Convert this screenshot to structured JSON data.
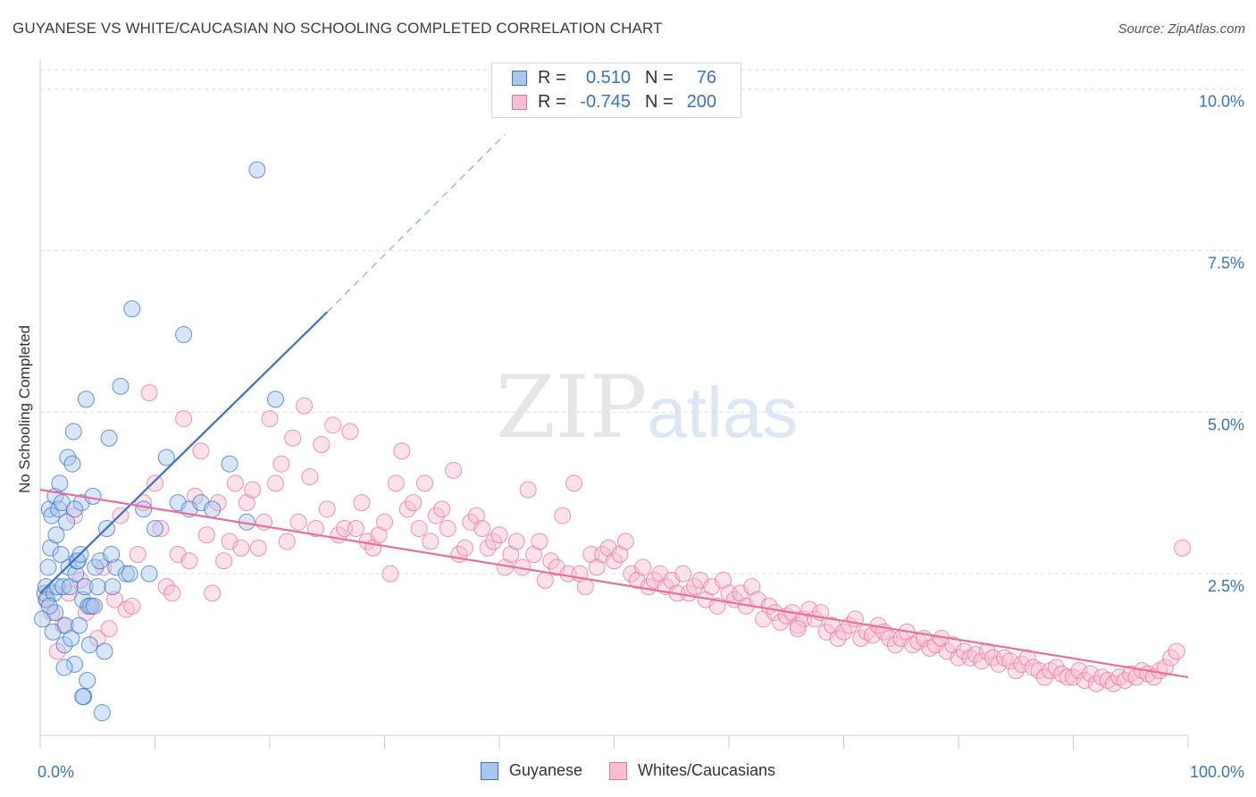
{
  "title": "GUYANESE VS WHITE/CAUCASIAN NO SCHOOLING COMPLETED CORRELATION CHART",
  "source": "Source: ZipAtlas.com",
  "watermark": {
    "zip": "ZIP",
    "atlas": "atlas"
  },
  "colors": {
    "blue": "#3a72c8",
    "blue_fill": "#a9c6ee",
    "pink": "#e8709a",
    "pink_fill": "#f7bfd1",
    "grid": "#dddddd"
  },
  "legend_top": [
    {
      "r_label": "R =",
      "r_value": "0.510",
      "n_label": "N =",
      "n_value": "76",
      "color": "blue"
    },
    {
      "r_label": "R =",
      "r_value": "-0.745",
      "n_label": "N =",
      "n_value": "200",
      "color": "pink"
    }
  ],
  "legend_bottom": [
    {
      "label": "Guyanese",
      "color": "blue"
    },
    {
      "label": "Whites/Caucasians",
      "color": "pink"
    }
  ],
  "chart_data": {
    "type": "scatter",
    "title": "GUYANESE VS WHITE/CAUCASIAN NO SCHOOLING COMPLETED CORRELATION CHART",
    "xlabel": "",
    "ylabel": "No Schooling Completed",
    "xlim": [
      0,
      100
    ],
    "ylim": [
      0,
      10.3
    ],
    "x_tick_labels": {
      "0": "0.0%",
      "100": "100.0%"
    },
    "y_ticks": [
      2.5,
      5.0,
      7.5,
      10.0
    ],
    "y_tick_labels": [
      "2.5%",
      "5.0%",
      "7.5%",
      "10.0%"
    ],
    "grid": true,
    "legend": "top-center",
    "series": [
      {
        "name": "Guyanese",
        "color": "blue",
        "trend": {
          "x": [
            0.0,
            25.0
          ],
          "y": [
            2.2,
            6.55
          ],
          "dashed_to": [
            40.5,
            9.3
          ]
        },
        "points": [
          [
            0.2,
            1.8
          ],
          [
            0.4,
            2.2
          ],
          [
            0.5,
            2.3
          ],
          [
            0.6,
            2.1
          ],
          [
            0.7,
            2.6
          ],
          [
            0.8,
            3.5
          ],
          [
            0.9,
            2.9
          ],
          [
            1.0,
            3.4
          ],
          [
            1.1,
            1.6
          ],
          [
            1.2,
            2.2
          ],
          [
            1.3,
            3.7
          ],
          [
            1.4,
            3.1
          ],
          [
            1.5,
            2.3
          ],
          [
            1.6,
            3.5
          ],
          [
            1.7,
            3.9
          ],
          [
            1.8,
            2.8
          ],
          [
            1.9,
            3.6
          ],
          [
            2.0,
            2.3
          ],
          [
            2.1,
            1.4
          ],
          [
            2.2,
            1.7
          ],
          [
            2.3,
            3.3
          ],
          [
            2.4,
            4.3
          ],
          [
            2.5,
            2.6
          ],
          [
            2.6,
            2.3
          ],
          [
            2.7,
            1.5
          ],
          [
            2.8,
            4.2
          ],
          [
            2.9,
            4.7
          ],
          [
            3.0,
            1.1
          ],
          [
            3.1,
            2.5
          ],
          [
            3.2,
            2.7
          ],
          [
            3.3,
            2.7
          ],
          [
            3.4,
            1.7
          ],
          [
            3.5,
            2.8
          ],
          [
            3.6,
            3.6
          ],
          [
            3.7,
            2.1
          ],
          [
            3.8,
            0.6
          ],
          [
            3.9,
            2.3
          ],
          [
            4.0,
            5.2
          ],
          [
            4.1,
            0.85
          ],
          [
            4.2,
            2.0
          ],
          [
            4.3,
            1.4
          ],
          [
            4.4,
            2.0
          ],
          [
            4.6,
            3.7
          ],
          [
            4.7,
            2.0
          ],
          [
            4.8,
            2.6
          ],
          [
            5.0,
            2.3
          ],
          [
            5.2,
            2.7
          ],
          [
            5.4,
            0.35
          ],
          [
            5.6,
            1.3
          ],
          [
            5.8,
            3.2
          ],
          [
            6.0,
            4.6
          ],
          [
            6.3,
            2.3
          ],
          [
            6.6,
            2.6
          ],
          [
            7.0,
            5.4
          ],
          [
            7.5,
            2.5
          ],
          [
            7.8,
            2.5
          ],
          [
            8.0,
            6.6
          ],
          [
            9.0,
            3.5
          ],
          [
            9.5,
            2.5
          ],
          [
            10.0,
            3.2
          ],
          [
            11.0,
            4.3
          ],
          [
            12.0,
            3.6
          ],
          [
            12.5,
            6.2
          ],
          [
            13.0,
            3.5
          ],
          [
            14.0,
            3.6
          ],
          [
            15.0,
            3.5
          ],
          [
            16.5,
            4.2
          ],
          [
            18.0,
            3.3
          ],
          [
            18.9,
            8.75
          ],
          [
            20.5,
            5.2
          ],
          [
            6.2,
            2.8
          ],
          [
            2.1,
            1.05
          ],
          [
            3.0,
            3.5
          ],
          [
            1.3,
            1.9
          ],
          [
            0.8,
            2.0
          ],
          [
            3.7,
            0.6
          ]
        ]
      },
      {
        "name": "Whites/Caucasians",
        "color": "pink",
        "trend": {
          "x": [
            0.0,
            100.0
          ],
          "y": [
            3.8,
            0.9
          ]
        },
        "points": [
          [
            0.5,
            2.1
          ],
          [
            1.0,
            1.9
          ],
          [
            1.5,
            1.3
          ],
          [
            2.0,
            1.7
          ],
          [
            2.5,
            2.2
          ],
          [
            3.0,
            3.4
          ],
          [
            3.5,
            2.4
          ],
          [
            4.0,
            1.9
          ],
          [
            4.5,
            2.0
          ],
          [
            5.0,
            1.5
          ],
          [
            5.5,
            2.6
          ],
          [
            6.0,
            1.65
          ],
          [
            6.5,
            2.1
          ],
          [
            7.0,
            3.4
          ],
          [
            7.5,
            1.95
          ],
          [
            8.0,
            2.0
          ],
          [
            8.5,
            2.8
          ],
          [
            9.0,
            3.6
          ],
          [
            9.5,
            5.3
          ],
          [
            10.0,
            3.9
          ],
          [
            10.5,
            3.2
          ],
          [
            11.0,
            2.3
          ],
          [
            11.5,
            2.2
          ],
          [
            12.0,
            2.8
          ],
          [
            12.5,
            4.9
          ],
          [
            13.0,
            2.7
          ],
          [
            13.5,
            3.7
          ],
          [
            14.0,
            4.4
          ],
          [
            14.5,
            3.1
          ],
          [
            15.0,
            2.2
          ],
          [
            15.5,
            3.6
          ],
          [
            16.0,
            2.7
          ],
          [
            16.5,
            3.0
          ],
          [
            17.0,
            3.9
          ],
          [
            17.5,
            2.9
          ],
          [
            18.0,
            3.6
          ],
          [
            18.5,
            3.8
          ],
          [
            19.0,
            2.9
          ],
          [
            19.5,
            3.3
          ],
          [
            20.0,
            4.9
          ],
          [
            20.5,
            3.9
          ],
          [
            21.0,
            4.2
          ],
          [
            21.5,
            3.0
          ],
          [
            22.0,
            4.6
          ],
          [
            22.5,
            3.3
          ],
          [
            23.0,
            5.1
          ],
          [
            23.5,
            4.0
          ],
          [
            24.0,
            3.2
          ],
          [
            24.5,
            4.5
          ],
          [
            25.0,
            3.5
          ],
          [
            25.5,
            4.8
          ],
          [
            26.0,
            3.1
          ],
          [
            26.5,
            3.2
          ],
          [
            27.0,
            4.7
          ],
          [
            27.5,
            3.2
          ],
          [
            28.0,
            3.6
          ],
          [
            28.5,
            3.0
          ],
          [
            29.0,
            2.9
          ],
          [
            29.5,
            3.1
          ],
          [
            30.0,
            3.3
          ],
          [
            30.5,
            2.5
          ],
          [
            31.0,
            3.9
          ],
          [
            31.5,
            4.4
          ],
          [
            32.0,
            3.5
          ],
          [
            32.5,
            3.6
          ],
          [
            33.0,
            3.2
          ],
          [
            33.5,
            3.9
          ],
          [
            34.0,
            3.0
          ],
          [
            34.5,
            3.4
          ],
          [
            35.0,
            3.5
          ],
          [
            35.5,
            3.2
          ],
          [
            36.0,
            4.1
          ],
          [
            36.5,
            2.8
          ],
          [
            37.0,
            2.9
          ],
          [
            37.5,
            3.3
          ],
          [
            38.0,
            3.4
          ],
          [
            38.5,
            3.2
          ],
          [
            39.0,
            2.9
          ],
          [
            39.5,
            3.0
          ],
          [
            40.0,
            3.1
          ],
          [
            40.5,
            2.6
          ],
          [
            41.0,
            2.8
          ],
          [
            41.5,
            3.0
          ],
          [
            42.0,
            2.6
          ],
          [
            42.5,
            3.8
          ],
          [
            43.0,
            2.8
          ],
          [
            43.5,
            3.0
          ],
          [
            44.0,
            2.4
          ],
          [
            44.5,
            2.7
          ],
          [
            45.0,
            2.6
          ],
          [
            45.5,
            3.4
          ],
          [
            46.0,
            2.5
          ],
          [
            46.5,
            3.9
          ],
          [
            47.0,
            2.5
          ],
          [
            47.5,
            2.3
          ],
          [
            48.0,
            2.8
          ],
          [
            48.5,
            2.6
          ],
          [
            49.0,
            2.8
          ],
          [
            49.5,
            2.9
          ],
          [
            50.0,
            2.7
          ],
          [
            50.5,
            2.8
          ],
          [
            51.0,
            3.0
          ],
          [
            51.5,
            2.5
          ],
          [
            52.0,
            2.4
          ],
          [
            52.5,
            2.6
          ],
          [
            53.0,
            2.3
          ],
          [
            53.5,
            2.4
          ],
          [
            54.0,
            2.5
          ],
          [
            54.5,
            2.3
          ],
          [
            55.0,
            2.4
          ],
          [
            55.5,
            2.2
          ],
          [
            56.0,
            2.5
          ],
          [
            56.5,
            2.2
          ],
          [
            57.0,
            2.3
          ],
          [
            57.5,
            2.4
          ],
          [
            58.0,
            2.1
          ],
          [
            58.5,
            2.3
          ],
          [
            59.0,
            2.0
          ],
          [
            59.5,
            2.4
          ],
          [
            60.0,
            2.2
          ],
          [
            60.5,
            2.1
          ],
          [
            61.0,
            2.2
          ],
          [
            61.5,
            2.0
          ],
          [
            62.0,
            2.3
          ],
          [
            62.5,
            2.1
          ],
          [
            63.0,
            1.8
          ],
          [
            63.5,
            2.0
          ],
          [
            64.0,
            1.9
          ],
          [
            64.5,
            1.75
          ],
          [
            65.0,
            1.85
          ],
          [
            65.5,
            1.9
          ],
          [
            66.0,
            1.7
          ],
          [
            66.5,
            1.8
          ],
          [
            67.0,
            1.95
          ],
          [
            67.5,
            1.8
          ],
          [
            68.0,
            1.9
          ],
          [
            68.5,
            1.6
          ],
          [
            69.0,
            1.7
          ],
          [
            69.5,
            1.5
          ],
          [
            70.0,
            1.6
          ],
          [
            70.5,
            1.7
          ],
          [
            71.0,
            1.8
          ],
          [
            71.5,
            1.5
          ],
          [
            72.0,
            1.6
          ],
          [
            72.5,
            1.55
          ],
          [
            73.0,
            1.7
          ],
          [
            73.5,
            1.6
          ],
          [
            74.0,
            1.5
          ],
          [
            74.5,
            1.4
          ],
          [
            75.0,
            1.5
          ],
          [
            75.5,
            1.6
          ],
          [
            76.0,
            1.4
          ],
          [
            76.5,
            1.45
          ],
          [
            77.0,
            1.5
          ],
          [
            77.5,
            1.35
          ],
          [
            78.0,
            1.4
          ],
          [
            78.5,
            1.5
          ],
          [
            79.0,
            1.3
          ],
          [
            79.5,
            1.4
          ],
          [
            80.0,
            1.2
          ],
          [
            80.5,
            1.3
          ],
          [
            81.0,
            1.2
          ],
          [
            81.5,
            1.25
          ],
          [
            82.0,
            1.15
          ],
          [
            82.5,
            1.3
          ],
          [
            83.0,
            1.2
          ],
          [
            83.5,
            1.1
          ],
          [
            84.0,
            1.2
          ],
          [
            84.5,
            1.15
          ],
          [
            85.0,
            1.0
          ],
          [
            85.5,
            1.1
          ],
          [
            86.0,
            1.2
          ],
          [
            86.5,
            1.05
          ],
          [
            87.0,
            1.0
          ],
          [
            87.5,
            0.9
          ],
          [
            88.0,
            1.0
          ],
          [
            88.5,
            1.05
          ],
          [
            89.0,
            0.95
          ],
          [
            89.5,
            0.9
          ],
          [
            90.0,
            0.9
          ],
          [
            90.5,
            1.0
          ],
          [
            91.0,
            0.85
          ],
          [
            91.5,
            0.95
          ],
          [
            92.0,
            0.8
          ],
          [
            92.5,
            0.9
          ],
          [
            93.0,
            0.85
          ],
          [
            93.5,
            0.8
          ],
          [
            94.0,
            0.9
          ],
          [
            94.5,
            0.85
          ],
          [
            95.0,
            0.95
          ],
          [
            95.5,
            0.9
          ],
          [
            96.0,
            1.0
          ],
          [
            96.5,
            0.95
          ],
          [
            97.0,
            0.9
          ],
          [
            97.5,
            1.0
          ],
          [
            98.0,
            1.05
          ],
          [
            98.5,
            1.2
          ],
          [
            99.0,
            1.3
          ],
          [
            99.5,
            2.9
          ],
          [
            66.0,
            1.65
          ]
        ]
      }
    ]
  }
}
